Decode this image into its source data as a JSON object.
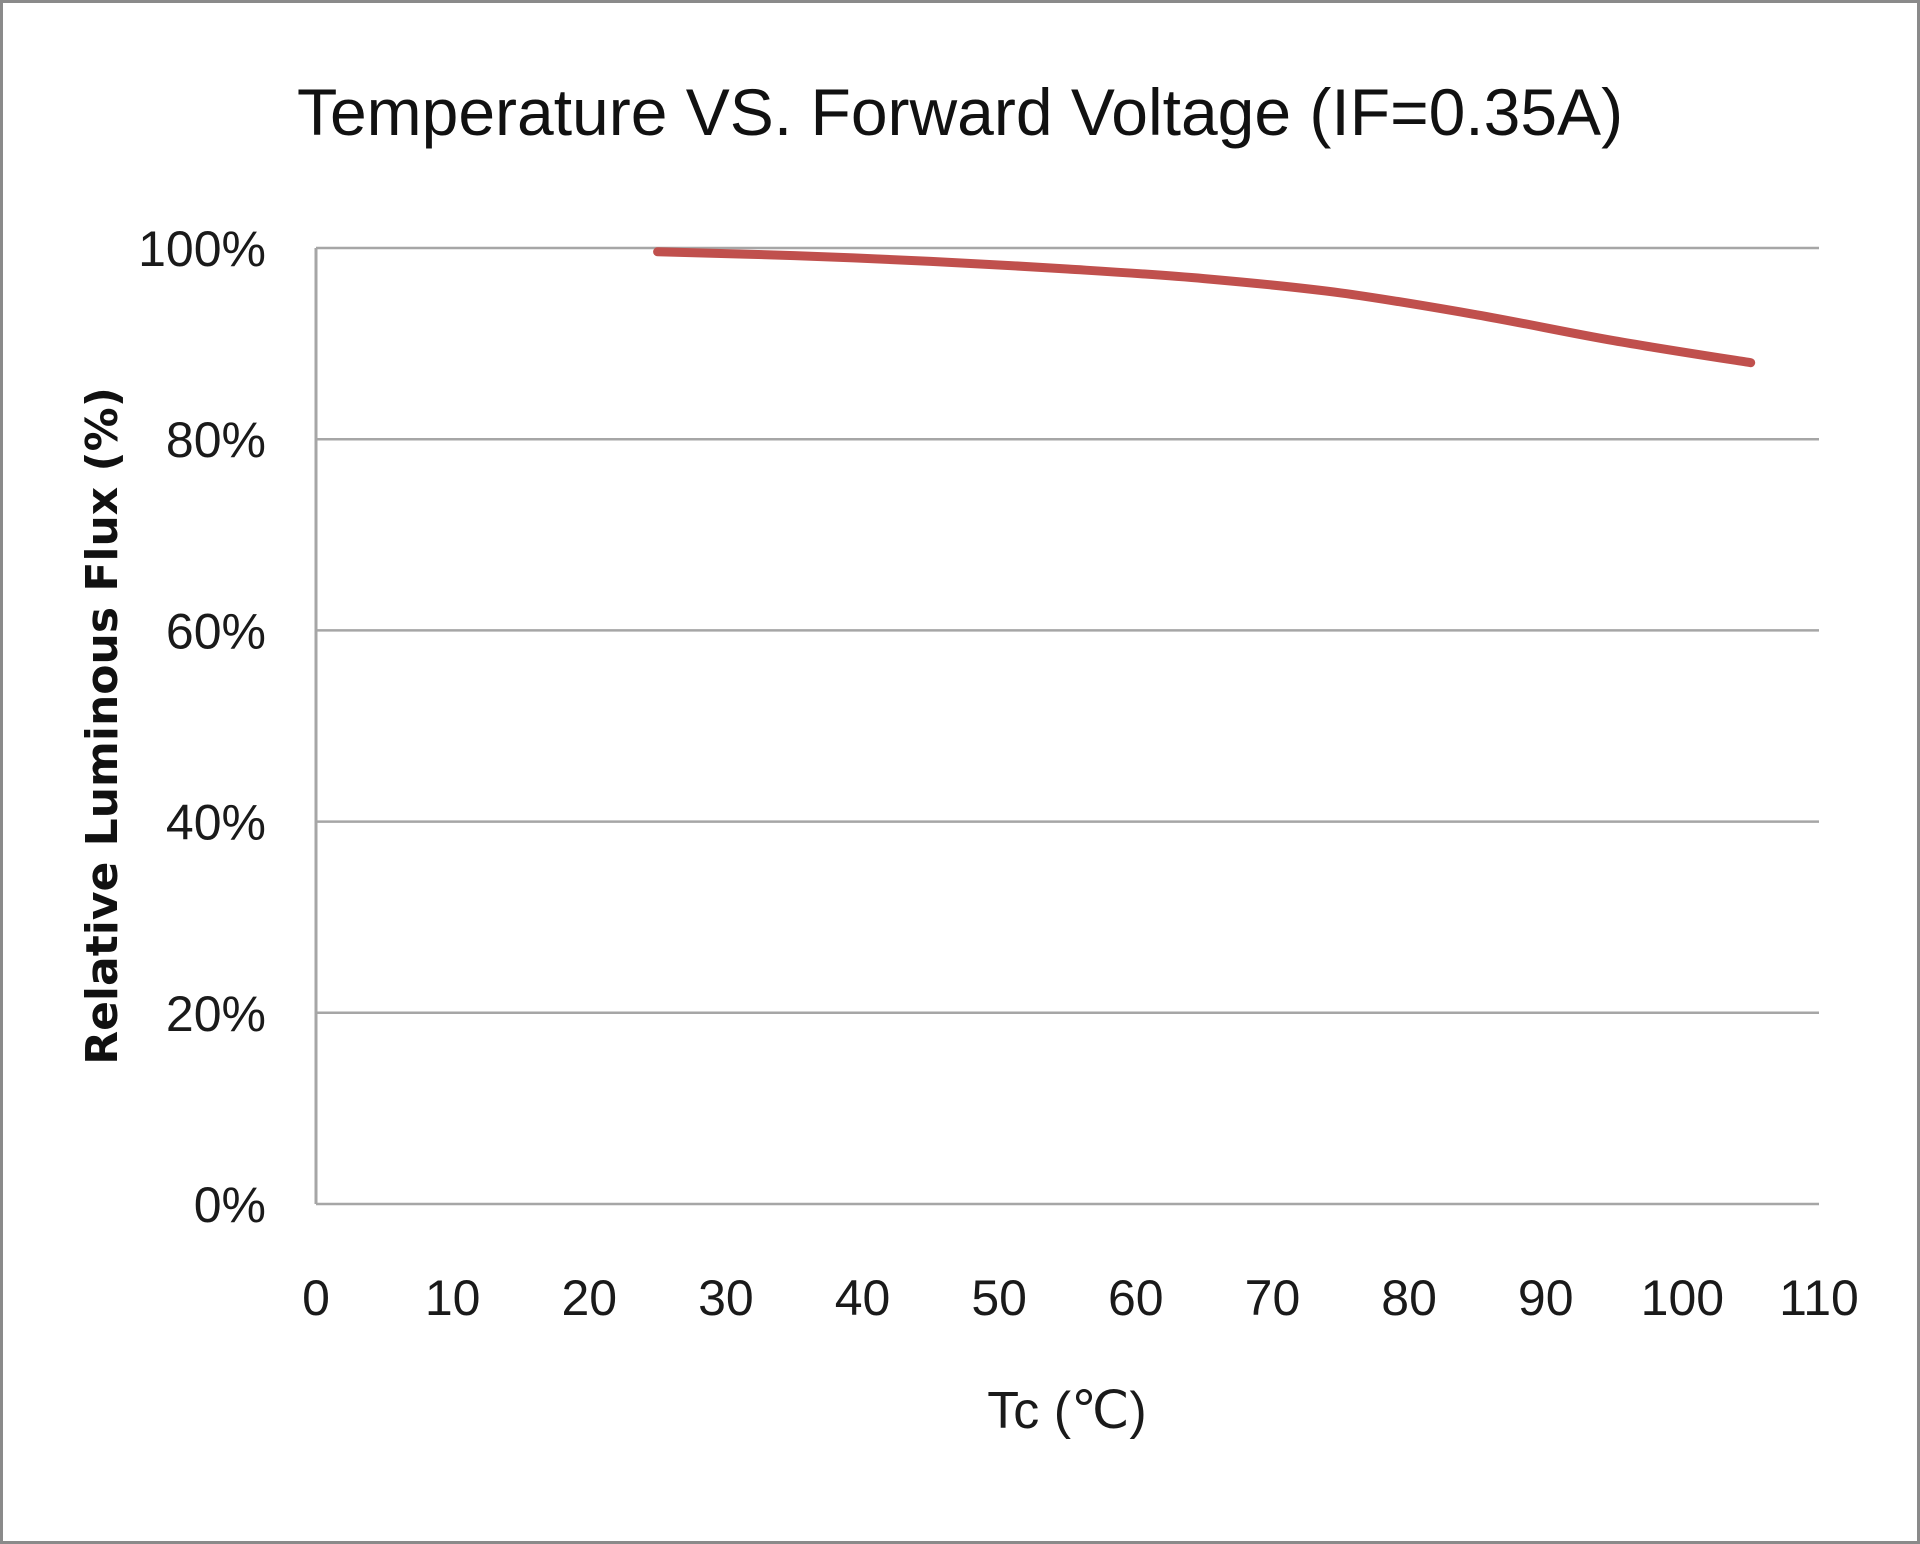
{
  "chart_data": {
    "type": "line",
    "title": "Temperature VS. Forward Voltage (IF=0.35A)",
    "xlabel": "Tc (℃)",
    "ylabel": "Relative Luminous Flux (%)",
    "xlim": [
      0,
      110
    ],
    "ylim": [
      0,
      100
    ],
    "x_ticks": [
      0,
      10,
      20,
      30,
      40,
      50,
      60,
      70,
      80,
      90,
      100,
      110
    ],
    "x_tick_labels": [
      "0",
      "10",
      "20",
      "30",
      "40",
      "50",
      "60",
      "70",
      "80",
      "90",
      "100",
      "110"
    ],
    "y_ticks": [
      0,
      20,
      40,
      60,
      80,
      100
    ],
    "y_tick_labels": [
      "0%",
      "20%",
      "40%",
      "60%",
      "80%",
      "100%"
    ],
    "grid": "horizontal",
    "legend": "none",
    "series": [
      {
        "color": "#c0504d",
        "x": [
          25,
          35,
          45,
          55,
          65,
          75,
          85,
          95,
          105
        ],
        "y": [
          99.6,
          99.2,
          98.6,
          97.8,
          96.8,
          95.3,
          93.0,
          90.3,
          88.0
        ]
      }
    ]
  }
}
